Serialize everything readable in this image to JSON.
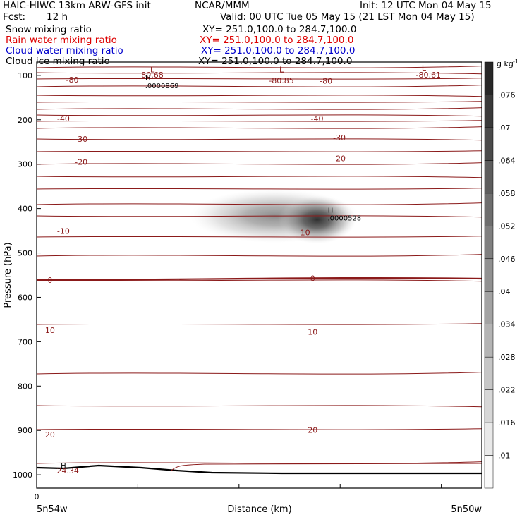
{
  "header": {
    "title_left": "HAIC-HIWC 13km ARW-GFS init",
    "center": "NCAR/MMM",
    "init": "Init: 12 UTC Mon 04 May 15",
    "fcst_label": "Fcst:",
    "fcst_value": "12 h",
    "valid": "Valid: 00 UTC Tue 05 May 15 (21 LST Mon 04 May 15)"
  },
  "fields": [
    {
      "name": "Snow mixing ratio",
      "xy": "XY= 251.0,100.0 to 284.7,100.0",
      "color": "#000000"
    },
    {
      "name": "Rain water mixing ratio",
      "xy": "XY= 251.0,100.0 to 284.7,100.0",
      "color": "#dd0000"
    },
    {
      "name": "Cloud water mixing ratio",
      "xy": "XY= 251.0,100.0 to 284.7,100.0",
      "color": "#0000cc"
    },
    {
      "name": "Cloud ice mixing ratio",
      "xy": "XY= 251.0,100.0 to 284.7,100.0",
      "color": "#000000"
    }
  ],
  "chart_data": {
    "type": "cross-section",
    "xlabel": "Distance (km)",
    "ylabel": "Pressure (hPa)",
    "x_start_label": "5n54w",
    "x_end_label": "5n50w",
    "x_zero_label": "0",
    "y_range": [
      1030,
      70
    ],
    "y_ticks": [
      100,
      200,
      300,
      400,
      500,
      600,
      700,
      800,
      900,
      1000
    ],
    "temperature_contours": [
      {
        "p": 110,
        "label": "-80"
      },
      {
        "p": 197,
        "label": "-40"
      },
      {
        "p": 240,
        "label": "-30"
      },
      {
        "p": 290,
        "label": "-20"
      },
      {
        "p": 340,
        "label": "-10"
      },
      {
        "p": 378,
        "label": "0"
      },
      {
        "p": 414,
        "label": "10"
      },
      {
        "p": 497,
        "label": "20"
      }
    ],
    "contour_labels": [
      {
        "text": "-80",
        "x": 0.08,
        "p": 110
      },
      {
        "text": "-80.85",
        "x": 0.55,
        "p": 111
      },
      {
        "text": "-80",
        "x": 0.65,
        "p": 112
      },
      {
        "text": "-80.61",
        "x": 0.88,
        "p": 99
      },
      {
        "text": "-40",
        "x": 0.06,
        "p": 197
      },
      {
        "text": "-40",
        "x": 0.63,
        "p": 197
      },
      {
        "text": "-30",
        "x": 0.1,
        "p": 243
      },
      {
        "text": "-30",
        "x": 0.68,
        "p": 240
      },
      {
        "text": "-20",
        "x": 0.1,
        "p": 295
      },
      {
        "text": "-20",
        "x": 0.68,
        "p": 287
      },
      {
        "text": "-10",
        "x": 0.06,
        "p": 451
      },
      {
        "text": "-10",
        "x": 0.6,
        "p": 454
      },
      {
        "text": "0",
        "x": 0.03,
        "p": 561
      },
      {
        "text": "0",
        "x": 0.62,
        "p": 557
      },
      {
        "text": "10",
        "x": 0.03,
        "p": 674
      },
      {
        "text": "10",
        "x": 0.62,
        "p": 678
      },
      {
        "text": "20",
        "x": 0.03,
        "p": 909
      },
      {
        "text": "20",
        "x": 0.62,
        "p": 899
      },
      {
        "text": "80.68",
        "x": 0.26,
        "p": 99
      },
      {
        "text": "24.34",
        "x": 0.07,
        "p": 990
      }
    ],
    "extrema": [
      {
        "type": "L",
        "x": 0.26,
        "p": 87
      },
      {
        "type": "H",
        "x": 0.25,
        "p": 105,
        "value": ".0000869"
      },
      {
        "type": "L",
        "x": 0.55,
        "p": 87
      },
      {
        "type": "L",
        "x": 0.87,
        "p": 83
      },
      {
        "type": "H",
        "x": 0.66,
        "p": 403,
        "value": ".0000528"
      },
      {
        "type": "H",
        "x": 0.06,
        "p": 978
      }
    ],
    "shading": {
      "center_x": 0.63,
      "center_p": 425,
      "max": 5.28e-05
    },
    "colorbar": {
      "unit": "g kg",
      "unit_exp": "-1",
      "levels": [
        ".01",
        ".016",
        ".022",
        ".028",
        ".034",
        ".04",
        ".046",
        ".052",
        ".058",
        ".064",
        ".07",
        ".076"
      ]
    }
  }
}
